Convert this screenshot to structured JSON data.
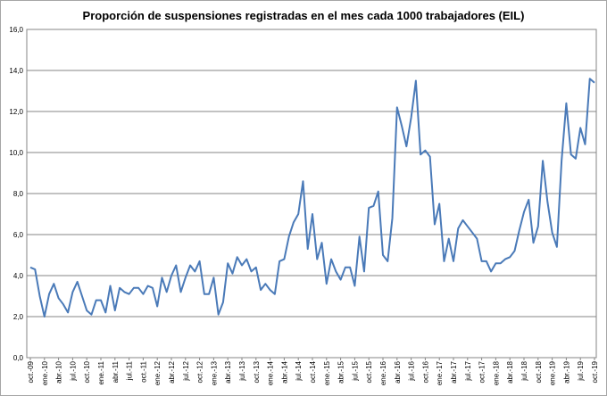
{
  "chart_data": {
    "type": "line",
    "title": "Proporción de suspensiones  registradas en el mes cada 1000 trabajadores (EIL)",
    "xlabel": "",
    "ylabel": "",
    "ylim": [
      0,
      16
    ],
    "y_ticks": [
      "0,0",
      "2,0",
      "4,0",
      "6,0",
      "8,0",
      "10,0",
      "12,0",
      "14,0",
      "16,0"
    ],
    "grid": "horizontal",
    "legend": "none",
    "x_tick_labels": [
      "oct.-09",
      "ene.-10",
      "abr.-10",
      "jul.-10",
      "oct.-10",
      "ene.-11",
      "abr.-11",
      "jul.-11",
      "oct.-11",
      "ene.-12",
      "abr.-12",
      "jul.-12",
      "oct.-12",
      "ene.-13",
      "abr.-13",
      "jul.-13",
      "oct.-13",
      "ene.-14",
      "abr.-14",
      "jul.-14",
      "oct.-14",
      "ene.-15",
      "abr.-15",
      "jul.-15",
      "oct.-15",
      "ene.-16",
      "abr.-16",
      "jul.-16",
      "oct.-16",
      "ene.-17",
      "abr.-17",
      "jul.-17",
      "oct.-17",
      "ene.-18",
      "abr.-18",
      "jul.-18",
      "oct.-18",
      "ene.-19",
      "abr.-19",
      "jul.-19",
      "oct.-19"
    ],
    "series": [
      {
        "color": "#4a7ab8",
        "values": [
          4.4,
          4.3,
          3.0,
          2.0,
          3.1,
          3.6,
          2.9,
          2.6,
          2.2,
          3.2,
          3.7,
          3.0,
          2.3,
          2.1,
          2.8,
          2.8,
          2.2,
          3.5,
          2.3,
          3.4,
          3.2,
          3.1,
          3.4,
          3.4,
          3.1,
          3.5,
          3.4,
          2.5,
          3.9,
          3.2,
          4.0,
          4.5,
          3.2,
          3.9,
          4.5,
          4.2,
          4.7,
          3.1,
          3.1,
          3.9,
          2.1,
          2.7,
          4.6,
          4.1,
          4.9,
          4.5,
          4.8,
          4.2,
          4.4,
          3.3,
          3.6,
          3.3,
          3.1,
          4.7,
          4.8,
          5.9,
          6.6,
          7.0,
          8.6,
          5.3,
          7.0,
          4.8,
          5.6,
          3.6,
          4.8,
          4.2,
          3.8,
          4.4,
          4.4,
          3.5,
          5.9,
          4.2,
          7.3,
          7.4,
          8.1,
          5.0,
          4.7,
          6.8,
          12.2,
          11.3,
          10.3,
          11.7,
          13.5,
          9.9,
          10.1,
          9.8,
          6.5,
          7.5,
          4.7,
          5.8,
          4.7,
          6.3,
          6.7,
          6.4,
          6.1,
          5.8,
          4.7,
          4.7,
          4.2,
          4.6,
          4.6,
          4.8,
          4.9,
          5.2,
          6.2,
          7.1,
          7.7,
          5.6,
          6.4,
          9.6,
          7.6,
          6.1,
          5.4,
          9.6,
          12.4,
          9.9,
          9.7,
          11.2,
          10.4,
          13.6,
          13.4
        ]
      }
    ]
  }
}
